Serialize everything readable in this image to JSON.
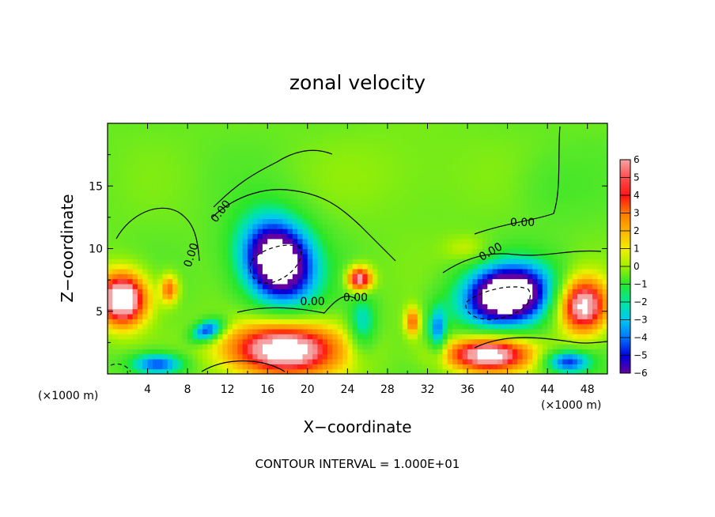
{
  "chart_data": {
    "type": "heatmap",
    "title": "zonal velocity",
    "xlabel": "X−coordinate",
    "ylabel": "Z−coordinate",
    "x_unit_left": "(×1000 m)",
    "x_unit_right": "(×1000 m)",
    "xlim": [
      0,
      50
    ],
    "ylim": [
      0,
      20
    ],
    "x_ticks": [
      4,
      8,
      12,
      16,
      20,
      24,
      28,
      32,
      36,
      40,
      44,
      48
    ],
    "y_ticks": [
      5,
      10,
      15
    ],
    "colorbar_ticks": [
      6,
      5,
      4,
      3,
      2,
      1,
      0,
      -1,
      -2,
      -3,
      -4,
      -5,
      -6
    ],
    "colorbar_range": [
      -6,
      6
    ],
    "contour_labels": [
      {
        "text": "0.00",
        "x": 11.6,
        "z": 12.8,
        "angle": -52
      },
      {
        "text": "0.00",
        "x": 8.7,
        "z": 9.4,
        "angle": -72
      },
      {
        "text": "0.00",
        "x": 20.5,
        "z": 5.5,
        "angle": 0
      },
      {
        "text": "0.00",
        "x": 24.8,
        "z": 5.8,
        "angle": 0
      },
      {
        "text": "0.00",
        "x": 41.5,
        "z": 11.8,
        "angle": 0
      },
      {
        "text": "0.00",
        "x": 38.5,
        "z": 9.5,
        "angle": -30
      }
    ],
    "footer": "CONTOUR INTERVAL = 1.000E+01",
    "features": [
      {
        "x": 1.5,
        "z": 6.0,
        "rx": 2.8,
        "rz": 2.4,
        "amp": 8.0
      },
      {
        "x": 6.2,
        "z": 6.8,
        "rx": 1.0,
        "rz": 1.3,
        "amp": 4.0
      },
      {
        "x": 17.0,
        "z": 9.0,
        "rx": 4.2,
        "rz": 3.6,
        "amp": -9.0,
        "rot": -0.55
      },
      {
        "x": 10.0,
        "z": 3.5,
        "rx": 1.8,
        "rz": 0.9,
        "amp": -5.5,
        "rot": 0.3
      },
      {
        "x": 17.5,
        "z": 2.0,
        "rx": 6.5,
        "rz": 2.5,
        "amp": 7.5
      },
      {
        "x": 5.0,
        "z": 0.8,
        "rx": 3.0,
        "rz": 1.0,
        "amp": -5.0
      },
      {
        "x": 25.2,
        "z": 7.6,
        "rx": 1.4,
        "rz": 1.1,
        "amp": 6.5
      },
      {
        "x": 25.5,
        "z": 4.0,
        "rx": 1.5,
        "rz": 2.4,
        "amp": -3.0
      },
      {
        "x": 30.5,
        "z": 4.2,
        "rx": 0.9,
        "rz": 1.3,
        "amp": 4.0
      },
      {
        "x": 33.0,
        "z": 3.5,
        "rx": 1.0,
        "rz": 2.0,
        "amp": -4.0
      },
      {
        "x": 40.0,
        "z": 6.3,
        "rx": 5.0,
        "rz": 2.7,
        "amp": -9.0,
        "rot": 0.1
      },
      {
        "x": 47.5,
        "z": 5.5,
        "rx": 2.8,
        "rz": 2.5,
        "amp": 7.0
      },
      {
        "x": 38.0,
        "z": 1.6,
        "rx": 5.0,
        "rz": 1.6,
        "amp": 7.0
      },
      {
        "x": 46.0,
        "z": 1.0,
        "rx": 2.5,
        "rz": 1.0,
        "amp": -5.0
      },
      {
        "x": 30.0,
        "z": 16.0,
        "rx": 8.0,
        "rz": 4.0,
        "amp": 0.6
      },
      {
        "x": 36.0,
        "z": 10.0,
        "rx": 2.5,
        "rz": 1.2,
        "amp": 1.4
      },
      {
        "x": 44.0,
        "z": 15.0,
        "rx": 4.0,
        "rz": 3.0,
        "amp": -0.6
      }
    ]
  }
}
